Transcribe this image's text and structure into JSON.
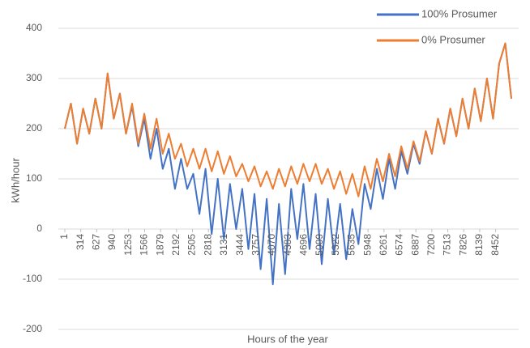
{
  "chart_data": {
    "type": "line",
    "x_label": "Hours of the year",
    "y_label": "kWh/hour",
    "x": [
      1,
      121,
      241,
      361,
      481,
      601,
      721,
      841,
      961,
      1081,
      1201,
      1321,
      1441,
      1561,
      1681,
      1801,
      1921,
      2041,
      2161,
      2281,
      2401,
      2521,
      2641,
      2761,
      2881,
      3001,
      3121,
      3241,
      3361,
      3481,
      3601,
      3721,
      3841,
      3961,
      4081,
      4201,
      4321,
      4441,
      4561,
      4681,
      4801,
      4921,
      5041,
      5161,
      5281,
      5401,
      5521,
      5641,
      5761,
      5881,
      6001,
      6121,
      6241,
      6361,
      6481,
      6601,
      6721,
      6841,
      6961,
      7081,
      7201,
      7321,
      7441,
      7561,
      7681,
      7801,
      7921,
      8041,
      8161,
      8281,
      8401,
      8521,
      8641,
      8760
    ],
    "series": [
      {
        "name": "100% Prosumer",
        "color": "#4472c4",
        "values": [
          200,
          250,
          170,
          240,
          190,
          260,
          200,
          310,
          220,
          270,
          190,
          245,
          165,
          220,
          140,
          200,
          120,
          160,
          80,
          140,
          80,
          110,
          30,
          120,
          -10,
          100,
          -20,
          90,
          0,
          80,
          -40,
          70,
          -80,
          60,
          -110,
          50,
          -90,
          80,
          -20,
          90,
          -40,
          70,
          -70,
          60,
          -50,
          50,
          -60,
          40,
          -30,
          90,
          40,
          120,
          60,
          140,
          80,
          155,
          110,
          170,
          130,
          195,
          150,
          220,
          170,
          240,
          185,
          260,
          200,
          280,
          215,
          300,
          220,
          330,
          370,
          260
        ]
      },
      {
        "name": "0% Prosumer",
        "color": "#ed7d31",
        "values": [
          200,
          250,
          170,
          240,
          190,
          260,
          200,
          310,
          220,
          270,
          190,
          250,
          170,
          230,
          160,
          220,
          150,
          190,
          140,
          170,
          125,
          160,
          120,
          160,
          115,
          155,
          110,
          145,
          105,
          130,
          95,
          125,
          85,
          115,
          80,
          120,
          85,
          125,
          90,
          130,
          95,
          130,
          90,
          120,
          80,
          115,
          70,
          110,
          65,
          125,
          80,
          140,
          95,
          150,
          105,
          165,
          120,
          175,
          135,
          195,
          150,
          220,
          170,
          240,
          185,
          260,
          200,
          280,
          215,
          300,
          220,
          330,
          370,
          260
        ]
      }
    ],
    "xlim": [
      1,
      8760
    ],
    "xticks": [
      1,
      314,
      627,
      940,
      1253,
      1566,
      1879,
      2192,
      2505,
      2818,
      3131,
      3444,
      3757,
      4070,
      4383,
      4696,
      5009,
      5322,
      5635,
      5948,
      6261,
      6574,
      6887,
      7200,
      7513,
      7826,
      8139,
      8452
    ],
    "ylim": [
      -200,
      400
    ],
    "yticks": [
      -200,
      -100,
      0,
      100,
      200,
      300,
      400
    ],
    "grid": true,
    "legend": "top-right"
  }
}
